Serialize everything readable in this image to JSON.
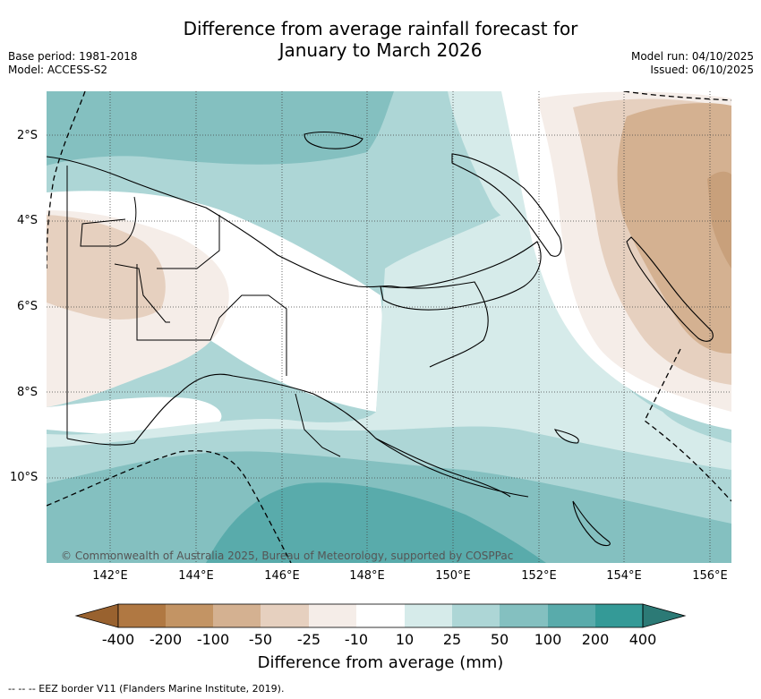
{
  "title": {
    "line1": "Difference from average rainfall forecast for",
    "line2": "January to March 2026"
  },
  "meta_left": {
    "base_period": "Base period: 1981-2018",
    "model": "Model: ACCESS-S2"
  },
  "meta_right": {
    "model_run": "Model run: 04/10/2025",
    "issued": "Issued: 06/10/2025"
  },
  "lat_labels": [
    "2°S",
    "4°S",
    "6°S",
    "8°S",
    "10°S"
  ],
  "lon_labels": [
    "142°E",
    "144°E",
    "146°E",
    "148°E",
    "150°E",
    "152°E",
    "154°E",
    "156°E"
  ],
  "copyright": "© Commonwealth of Australia 2025, Bureau of Meteorology, supported by COSPPac",
  "colorbar": {
    "label": "Difference from average (mm)",
    "ticks": [
      "-400",
      "-200",
      "-100",
      "-50",
      "-25",
      "-10",
      "10",
      "25",
      "50",
      "100",
      "200",
      "400"
    ],
    "colors": {
      "lt_neg400": "#99622f",
      "neg400_200": "#b07842",
      "neg200_100": "#c39464",
      "neg100_50": "#d4b191",
      "neg50_25": "#e6d0bf",
      "neg25_10": "#f5ede8",
      "neg10_10": "#ffffff",
      "p10_25": "#d6ebea",
      "p25_50": "#add6d6",
      "p50_100": "#84c0c0",
      "p100_200": "#59abab",
      "p200_400": "#349a97",
      "gt_400": "#2c7a76"
    }
  },
  "footnote": "--  --  -- EEZ border V11 (Flanders Marine Institute, 2019)."
}
